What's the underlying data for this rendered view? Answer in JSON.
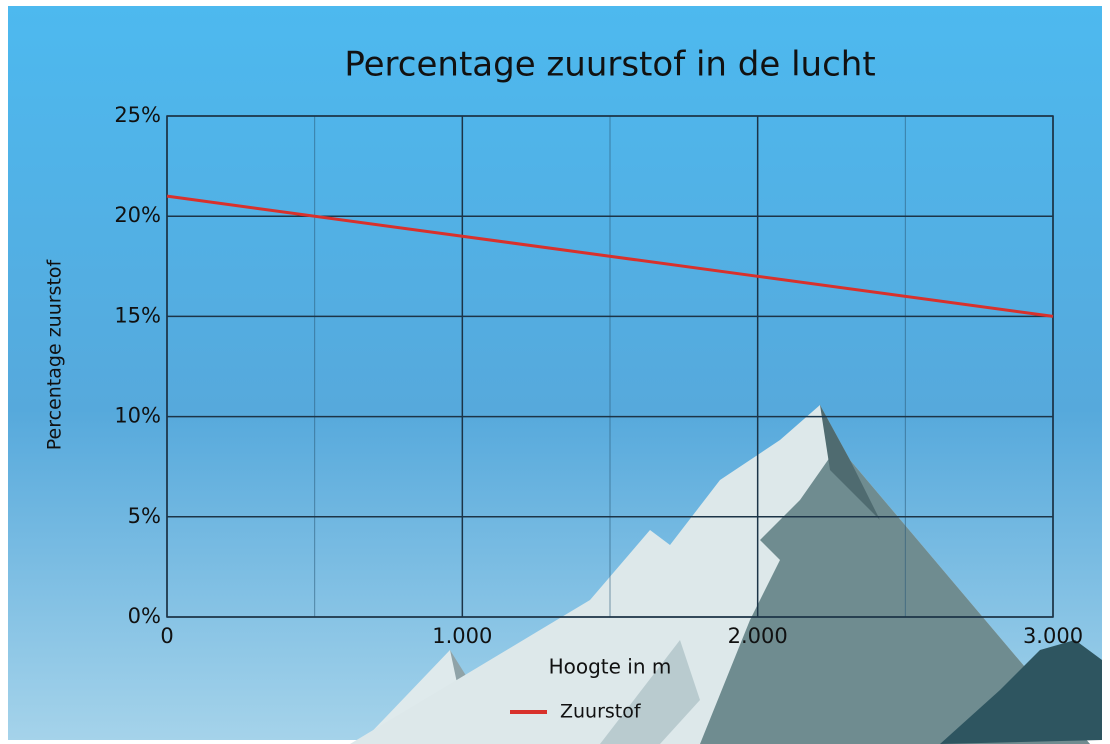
{
  "chart_data": {
    "type": "line",
    "title": "Percentage zuurstof in de lucht",
    "x_label": "Hoogte in m",
    "y_label": "Percentage zuurstof",
    "x": [
      0,
      1000,
      2000,
      3000
    ],
    "series": [
      {
        "name": "Zuurstof",
        "color": "#d8312c",
        "values": [
          21,
          19,
          17,
          15
        ]
      }
    ],
    "xlim": [
      0,
      3000
    ],
    "xticks": [
      0,
      {
        "value": 1000,
        "label": "1.000"
      },
      {
        "value": 2000,
        "label": "2.000"
      },
      {
        "value": 3000,
        "label": "3.000"
      }
    ],
    "xminorticks": [
      500,
      1500,
      2500
    ],
    "ylim": [
      0,
      25
    ],
    "yticks": [
      {
        "value": 0,
        "label": "0%"
      },
      {
        "value": 5,
        "label": "5%"
      },
      {
        "value": 10,
        "label": "10%"
      },
      {
        "value": 15,
        "label": "15%"
      },
      {
        "value": 20,
        "label": "20%"
      },
      {
        "value": 25,
        "label": "25%"
      }
    ],
    "grid": true,
    "legend": "bottom"
  }
}
